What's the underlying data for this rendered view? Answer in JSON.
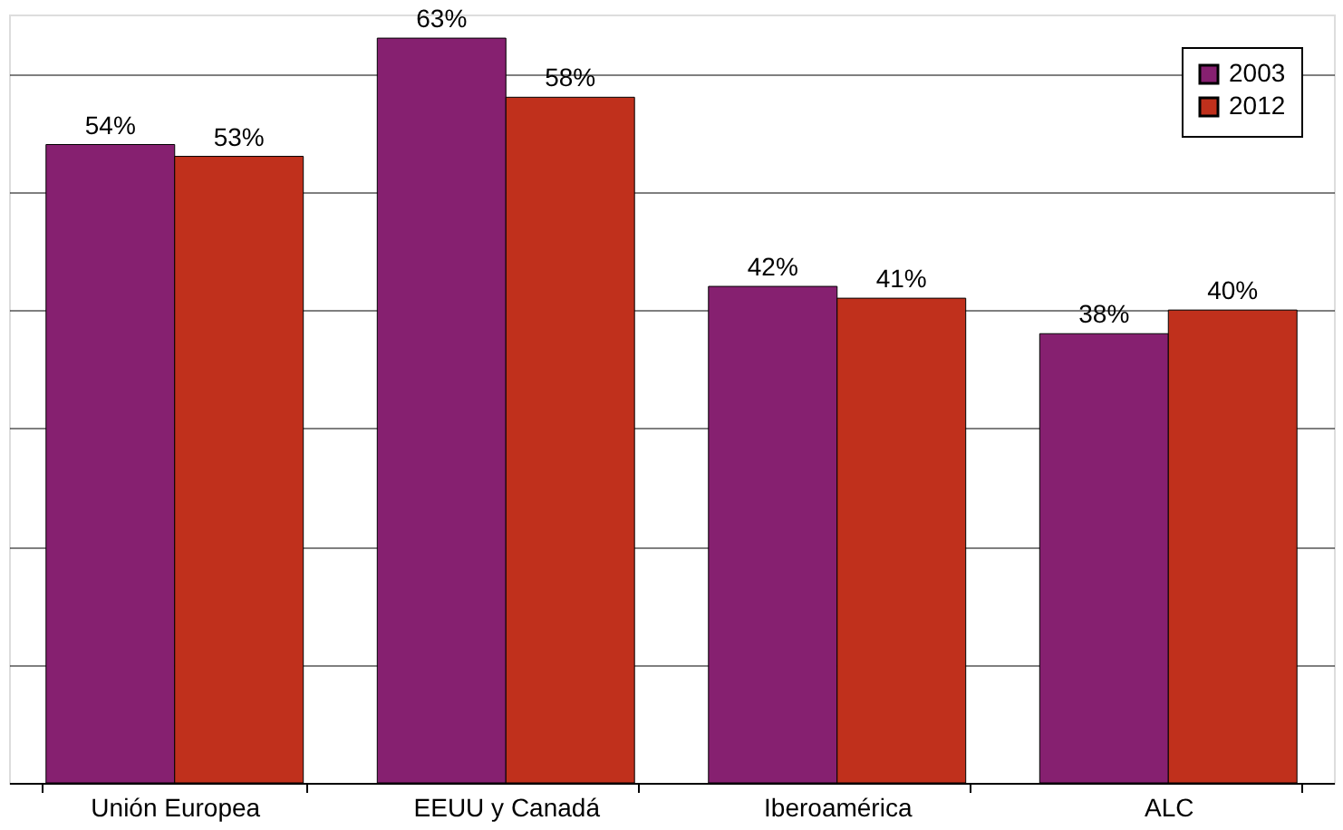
{
  "chart_data": {
    "type": "bar",
    "categories": [
      "Unión Europea",
      "EEUU y Canadá",
      "Iberoamérica",
      "ALC"
    ],
    "series": [
      {
        "name": "2003",
        "color": "#862070",
        "values": [
          54,
          63,
          42,
          38
        ],
        "value_labels": [
          "54%",
          "63%",
          "42%",
          "38%"
        ]
      },
      {
        "name": "2012",
        "color": "#c0301c",
        "values": [
          53,
          58,
          41,
          40
        ],
        "value_labels": [
          "53%",
          "58%",
          "41%",
          "40%"
        ]
      }
    ],
    "grid": "y",
    "legend": "top right",
    "tick_labels": "x"
  }
}
